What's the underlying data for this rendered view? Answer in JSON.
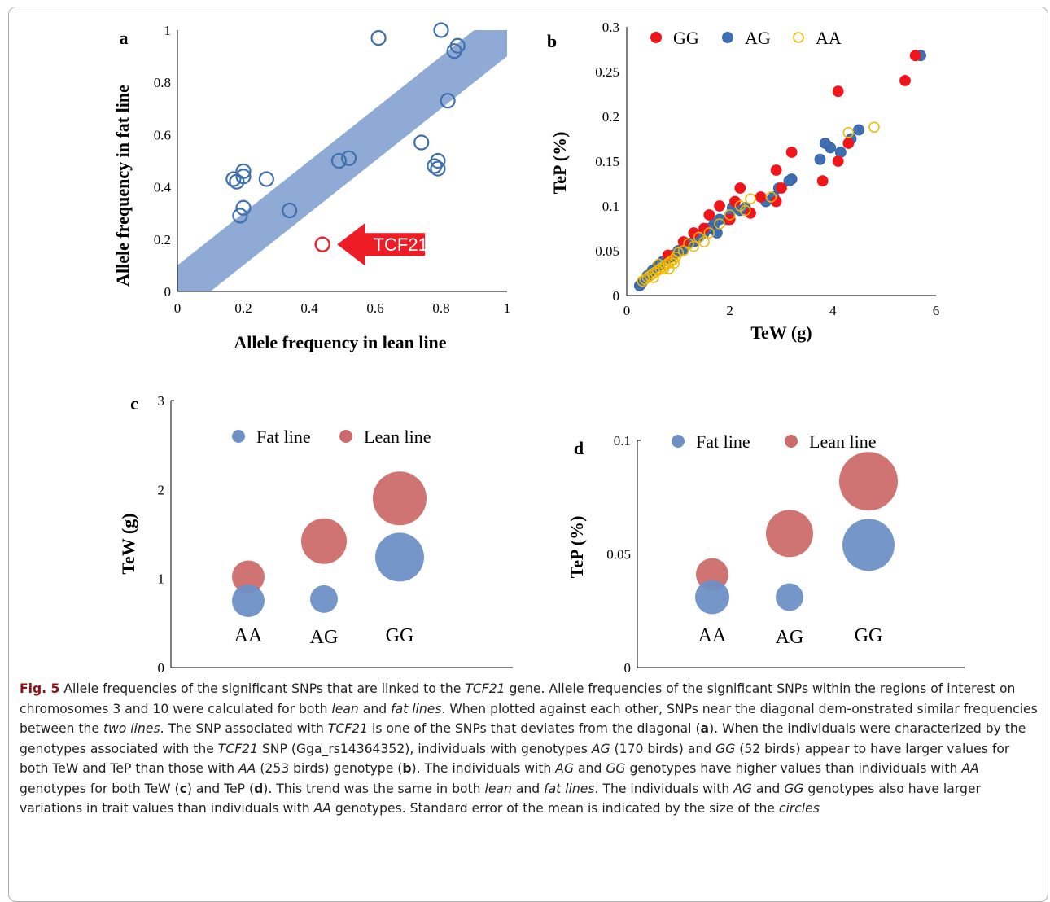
{
  "colors": {
    "band": "#8fabd5",
    "open_blue": "#3f6fae",
    "open_red": "#e8232d",
    "gg": "#f0151a",
    "ag": "#3f6fb3",
    "aa": "#f2b800",
    "fat": "#6e90c5",
    "lean": "#cc6b6b",
    "arrow": "#ee1c24"
  },
  "icons": [
    "arrow-left-icon"
  ],
  "chart_data": [
    {
      "id": "a",
      "type": "scatter",
      "panel_label": "a",
      "xlabel": "Allele frequency in lean line",
      "ylabel": "Allele frequency in fat line",
      "xlim": [
        0,
        1
      ],
      "ylim": [
        0,
        1
      ],
      "xticks": [
        "0",
        "0.2",
        "0.4",
        "0.6",
        "0.8",
        "1"
      ],
      "yticks": [
        "0",
        "0.2",
        "0.4",
        "0.6",
        "0.8",
        "1"
      ],
      "diagonal_band": {
        "intercept_low": -0.1,
        "intercept_high": 0.1
      },
      "points": [
        {
          "x": 0.61,
          "y": 0.97
        },
        {
          "x": 0.8,
          "y": 1.0
        },
        {
          "x": 0.85,
          "y": 0.94
        },
        {
          "x": 0.84,
          "y": 0.92
        },
        {
          "x": 0.82,
          "y": 0.73
        },
        {
          "x": 0.74,
          "y": 0.57
        },
        {
          "x": 0.79,
          "y": 0.5
        },
        {
          "x": 0.78,
          "y": 0.48
        },
        {
          "x": 0.79,
          "y": 0.47
        },
        {
          "x": 0.52,
          "y": 0.51
        },
        {
          "x": 0.49,
          "y": 0.5
        },
        {
          "x": 0.34,
          "y": 0.31
        },
        {
          "x": 0.27,
          "y": 0.43
        },
        {
          "x": 0.2,
          "y": 0.46
        },
        {
          "x": 0.2,
          "y": 0.44
        },
        {
          "x": 0.17,
          "y": 0.43
        },
        {
          "x": 0.18,
          "y": 0.42
        },
        {
          "x": 0.2,
          "y": 0.32
        },
        {
          "x": 0.19,
          "y": 0.29
        }
      ],
      "highlight": {
        "x": 0.44,
        "y": 0.18,
        "label": "TCF21"
      }
    },
    {
      "id": "b",
      "type": "scatter",
      "panel_label": "b",
      "xlabel": "TeW (g)",
      "ylabel": "TeP (%)",
      "xlim": [
        0,
        6
      ],
      "ylim": [
        0,
        0.3
      ],
      "xticks": [
        "0",
        "2",
        "4",
        "6"
      ],
      "yticks": [
        "0",
        "0.05",
        "0.1",
        "0.15",
        "0.2",
        "0.25",
        "0.3"
      ],
      "legend_position": "top",
      "series": [
        {
          "name": "GG",
          "marker": "filled",
          "points": [
            [
              5.6,
              0.268
            ],
            [
              5.4,
              0.24
            ],
            [
              4.1,
              0.228
            ],
            [
              3.2,
              0.16
            ],
            [
              2.9,
              0.14
            ],
            [
              3.8,
              0.128
            ],
            [
              4.1,
              0.15
            ],
            [
              4.3,
              0.17
            ],
            [
              3.0,
              0.12
            ],
            [
              2.6,
              0.11
            ],
            [
              2.1,
              0.105
            ],
            [
              2.2,
              0.12
            ],
            [
              1.8,
              0.1
            ],
            [
              2.4,
              0.092
            ],
            [
              1.6,
              0.09
            ],
            [
              2.9,
              0.105
            ],
            [
              1.3,
              0.07
            ],
            [
              1.1,
              0.06
            ],
            [
              0.8,
              0.045
            ],
            [
              1.5,
              0.075
            ],
            [
              2.0,
              0.085
            ]
          ]
        },
        {
          "name": "AG",
          "marker": "filled",
          "points": [
            [
              5.7,
              0.268
            ],
            [
              4.5,
              0.185
            ],
            [
              4.35,
              0.175
            ],
            [
              4.15,
              0.16
            ],
            [
              3.95,
              0.165
            ],
            [
              3.75,
              0.152
            ],
            [
              3.85,
              0.17
            ],
            [
              3.2,
              0.13
            ],
            [
              3.15,
              0.128
            ],
            [
              2.95,
              0.12
            ],
            [
              2.85,
              0.11
            ],
            [
              2.7,
              0.105
            ],
            [
              2.2,
              0.095
            ],
            [
              2.05,
              0.098
            ],
            [
              2.0,
              0.09
            ],
            [
              1.95,
              0.085
            ],
            [
              1.8,
              0.085
            ],
            [
              1.7,
              0.08
            ],
            [
              1.6,
              0.075
            ],
            [
              1.5,
              0.07
            ],
            [
              1.4,
              0.065
            ],
            [
              1.3,
              0.06
            ],
            [
              1.2,
              0.058
            ],
            [
              1.1,
              0.052
            ],
            [
              1.0,
              0.05
            ],
            [
              0.9,
              0.045
            ],
            [
              0.8,
              0.042
            ],
            [
              0.7,
              0.038
            ],
            [
              0.6,
              0.033
            ],
            [
              0.5,
              0.028
            ],
            [
              0.4,
              0.022
            ],
            [
              0.3,
              0.015
            ],
            [
              0.25,
              0.011
            ],
            [
              1.75,
              0.07
            ],
            [
              2.3,
              0.098
            ],
            [
              0.65,
              0.035
            ],
            [
              0.85,
              0.044
            ]
          ]
        },
        {
          "name": "AA",
          "marker": "open",
          "points": [
            [
              4.8,
              0.188
            ],
            [
              4.3,
              0.182
            ],
            [
              2.8,
              0.11
            ],
            [
              2.4,
              0.108
            ],
            [
              2.2,
              0.1
            ],
            [
              2.3,
              0.095
            ],
            [
              2.0,
              0.09
            ],
            [
              1.8,
              0.08
            ],
            [
              1.6,
              0.07
            ],
            [
              1.4,
              0.065
            ],
            [
              1.2,
              0.058
            ],
            [
              1.1,
              0.05
            ],
            [
              1.0,
              0.048
            ],
            [
              0.95,
              0.043
            ],
            [
              0.9,
              0.04
            ],
            [
              0.85,
              0.038
            ],
            [
              0.8,
              0.036
            ],
            [
              0.75,
              0.034
            ],
            [
              0.7,
              0.032
            ],
            [
              0.65,
              0.03
            ],
            [
              0.6,
              0.028
            ],
            [
              0.55,
              0.026
            ],
            [
              0.5,
              0.024
            ],
            [
              0.45,
              0.022
            ],
            [
              0.4,
              0.02
            ],
            [
              0.35,
              0.018
            ],
            [
              0.3,
              0.016
            ],
            [
              0.72,
              0.03
            ],
            [
              0.62,
              0.035
            ],
            [
              0.52,
              0.02
            ],
            [
              1.3,
              0.055
            ],
            [
              1.5,
              0.06
            ],
            [
              0.82,
              0.03
            ],
            [
              0.92,
              0.036
            ]
          ]
        }
      ]
    },
    {
      "id": "c",
      "type": "scatter",
      "panel_label": "c",
      "xlabel": "",
      "ylabel": "TeW (g)",
      "ylim": [
        0,
        3
      ],
      "yticks": [
        "0",
        "1",
        "2",
        "3"
      ],
      "categories": [
        "AA",
        "AG",
        "GG"
      ],
      "legend_position": "top",
      "series": [
        {
          "name": "Fat line",
          "values": [
            0.75,
            0.77,
            1.24
          ],
          "sizes": [
            0.2,
            0.17,
            0.3
          ]
        },
        {
          "name": "Lean line",
          "values": [
            1.02,
            1.42,
            1.9
          ],
          "sizes": [
            0.2,
            0.28,
            0.33
          ]
        }
      ]
    },
    {
      "id": "d",
      "type": "scatter",
      "panel_label": "d",
      "xlabel": "",
      "ylabel": "TeP (%)",
      "ylim": [
        0,
        0.1
      ],
      "yticks": [
        "0",
        "0.05",
        "0.1"
      ],
      "categories": [
        "AA",
        "AG",
        "GG"
      ],
      "legend_position": "top",
      "series": [
        {
          "name": "Fat line",
          "values": [
            0.031,
            0.031,
            0.054
          ],
          "sizes": [
            0.21,
            0.17,
            0.32
          ]
        },
        {
          "name": "Lean line",
          "values": [
            0.041,
            0.059,
            0.082
          ],
          "sizes": [
            0.2,
            0.29,
            0.36
          ]
        }
      ]
    }
  ],
  "caption": {
    "fig_label": "Fig. 5",
    "segments": [
      {
        "t": "  Allele frequencies of the significant SNPs that are linked to the ",
        "s": ""
      },
      {
        "t": "TCF21",
        "s": "i"
      },
      {
        "t": " gene. Allele frequencies of the significant SNPs within the regions of interest on chromosomes 3 and 10 were calculated for both ",
        "s": ""
      },
      {
        "t": "lean",
        "s": "i"
      },
      {
        "t": " and ",
        "s": ""
      },
      {
        "t": "fat lines",
        "s": "i"
      },
      {
        "t": ". When plotted against each other, SNPs near the diagonal dem-onstrated similar frequencies between the ",
        "s": ""
      },
      {
        "t": "two lines",
        "s": "i"
      },
      {
        "t": ". The SNP associated with ",
        "s": ""
      },
      {
        "t": "TCF21",
        "s": "i"
      },
      {
        "t": " is one of the SNPs that deviates from the diagonal (",
        "s": ""
      },
      {
        "t": "a",
        "s": "b"
      },
      {
        "t": "). When the individuals were characterized by the genotypes associated with the ",
        "s": ""
      },
      {
        "t": "TCF21",
        "s": "i"
      },
      {
        "t": " SNP (Gga_rs14364352), individuals with genotypes ",
        "s": ""
      },
      {
        "t": "AG",
        "s": "i"
      },
      {
        "t": " (170 birds) and ",
        "s": ""
      },
      {
        "t": "GG",
        "s": "i"
      },
      {
        "t": " (52 birds) appear to have larger values for both TeW and TeP than those with ",
        "s": ""
      },
      {
        "t": "AA",
        "s": "i"
      },
      {
        "t": " (253 birds) genotype (",
        "s": ""
      },
      {
        "t": "b",
        "s": "b"
      },
      {
        "t": "). The individuals with ",
        "s": ""
      },
      {
        "t": "AG",
        "s": "i"
      },
      {
        "t": " and ",
        "s": ""
      },
      {
        "t": "GG",
        "s": "i"
      },
      {
        "t": " genotypes have higher values than individuals with ",
        "s": ""
      },
      {
        "t": "AA",
        "s": "i"
      },
      {
        "t": " genotypes for both TeW (",
        "s": ""
      },
      {
        "t": "c",
        "s": "b"
      },
      {
        "t": ") and TeP (",
        "s": ""
      },
      {
        "t": "d",
        "s": "b"
      },
      {
        "t": "). This trend was the same in both ",
        "s": ""
      },
      {
        "t": "lean",
        "s": "i"
      },
      {
        "t": " and ",
        "s": ""
      },
      {
        "t": "fat lines",
        "s": "i"
      },
      {
        "t": ". The individuals with ",
        "s": ""
      },
      {
        "t": "AG",
        "s": "i"
      },
      {
        "t": " and ",
        "s": ""
      },
      {
        "t": "GG",
        "s": "i"
      },
      {
        "t": " genotypes also have larger variations in trait values than individuals with ",
        "s": ""
      },
      {
        "t": "AA",
        "s": "i"
      },
      {
        "t": " genotypes. Standard error of the mean is indicated by the size of the ",
        "s": ""
      },
      {
        "t": "circles",
        "s": "i"
      }
    ]
  }
}
